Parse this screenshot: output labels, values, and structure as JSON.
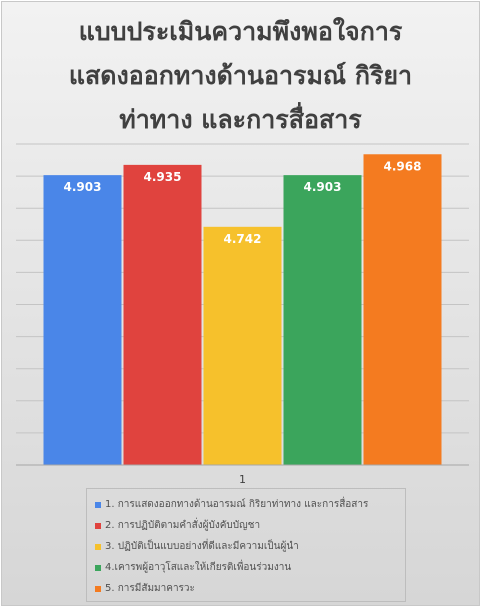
{
  "chart_data": {
    "type": "bar",
    "title_lines": [
      "แบบประเมินความพึงพอใจการ",
      "แสดงออกทางด้านอารมณ์ กิริยา",
      "ท่าทาง และการสื่อสาร"
    ],
    "categories": [
      "1"
    ],
    "ylim": [
      4.0,
      5.0
    ],
    "gridlines": [
      4.0,
      4.1,
      4.2,
      4.3,
      4.4,
      4.5,
      4.6,
      4.7,
      4.8,
      4.9,
      5.0
    ],
    "grid": true,
    "legend_position": "bottom",
    "series": [
      {
        "name": "1. การแสดงออกทางด้านอารมณ์  กิริยาท่าทาง และการสื่อสาร",
        "values": [
          4.903
        ],
        "label": "4.903",
        "color": "#4a86e8"
      },
      {
        "name": "2. การปฏิบัติตามคำสั่งผู้บังคับบัญชา",
        "values": [
          4.935
        ],
        "label": "4.935",
        "color": "#e0433e"
      },
      {
        "name": "3. ปฏิบัติเป็นแบบอย่างที่ดีและมีความเป็นผู้นำ",
        "values": [
          4.742
        ],
        "label": "4.742",
        "color": "#f6c12c"
      },
      {
        "name": "4.เคารพผู้อาวุโสและให้เกียรติเพื่อนร่วมงาน",
        "values": [
          4.903
        ],
        "label": "4.903",
        "color": "#3ba55c"
      },
      {
        "name": "5. การมีสัมมาคารวะ",
        "values": [
          4.968
        ],
        "label": "4.968",
        "color": "#f47b20"
      }
    ]
  }
}
